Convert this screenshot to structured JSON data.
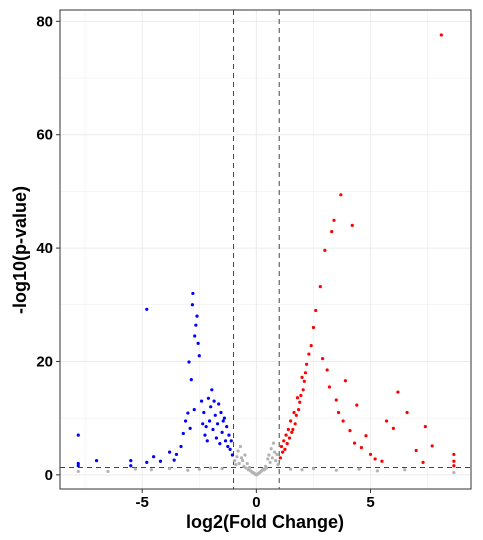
{
  "chart_data": {
    "type": "scatter",
    "title": "",
    "xlabel": "log2(Fold Change)",
    "ylabel": "-log10(p-value)",
    "xlim": [
      -8.6,
      9.4
    ],
    "ylim": [
      -2.5,
      82
    ],
    "x_ticks": [
      -5,
      0,
      5
    ],
    "y_ticks": [
      0,
      20,
      40,
      60,
      80
    ],
    "grid": true,
    "legend": "none",
    "thresholds": {
      "fold_change_log2": [
        -1,
        1
      ],
      "neg_log10_p": 1.3
    },
    "colors": {
      "down": "#0000ff",
      "up": "#ff0000",
      "not_significant": "#b3b3b3",
      "threshold_line": "#444444",
      "grid": "#ebebeb"
    },
    "series": [
      {
        "group": "down",
        "points": [
          [
            -7.8,
            7.0
          ],
          [
            -7.8,
            2.0
          ],
          [
            -7.8,
            1.6
          ],
          [
            -7.0,
            2.5
          ],
          [
            -5.5,
            2.5
          ],
          [
            -5.5,
            1.6
          ],
          [
            -4.8,
            29.2
          ],
          [
            -4.8,
            2.2
          ],
          [
            -4.5,
            3.2
          ],
          [
            -4.2,
            2.4
          ],
          [
            -3.8,
            4.0
          ],
          [
            -3.6,
            2.6
          ],
          [
            -3.5,
            3.6
          ],
          [
            -3.3,
            5.0
          ],
          [
            -3.2,
            7.3
          ],
          [
            -3.1,
            9.5
          ],
          [
            -3.0,
            10.9
          ],
          [
            -2.95,
            19.9
          ],
          [
            -2.9,
            8.2
          ],
          [
            -2.85,
            16.8
          ],
          [
            -2.8,
            30.0
          ],
          [
            -2.78,
            32.0
          ],
          [
            -2.72,
            11.5
          ],
          [
            -2.7,
            24.5
          ],
          [
            -2.65,
            26.4
          ],
          [
            -2.6,
            28.0
          ],
          [
            -2.55,
            23.2
          ],
          [
            -2.5,
            21.0
          ],
          [
            -2.4,
            13.0
          ],
          [
            -2.35,
            9.0
          ],
          [
            -2.3,
            11.0
          ],
          [
            -2.25,
            7.0
          ],
          [
            -2.2,
            8.5
          ],
          [
            -2.15,
            6.0
          ],
          [
            -2.1,
            13.5
          ],
          [
            -2.05,
            9.5
          ],
          [
            -2.0,
            12.0
          ],
          [
            -1.95,
            15.0
          ],
          [
            -1.9,
            8.0
          ],
          [
            -1.85,
            13.0
          ],
          [
            -1.8,
            10.5
          ],
          [
            -1.75,
            6.5
          ],
          [
            -1.7,
            9.0
          ],
          [
            -1.65,
            12.5
          ],
          [
            -1.6,
            5.5
          ],
          [
            -1.55,
            11.0
          ],
          [
            -1.5,
            7.5
          ],
          [
            -1.45,
            9.5
          ],
          [
            -1.4,
            10.0
          ],
          [
            -1.35,
            6.0
          ],
          [
            -1.3,
            8.5
          ],
          [
            -1.25,
            5.0
          ],
          [
            -1.2,
            7.0
          ],
          [
            -1.15,
            4.5
          ],
          [
            -1.1,
            6.0
          ],
          [
            -1.05,
            3.5
          ]
        ]
      },
      {
        "group": "up",
        "points": [
          [
            8.1,
            77.6
          ],
          [
            3.7,
            49.4
          ],
          [
            4.2,
            44.0
          ],
          [
            3.4,
            44.9
          ],
          [
            3.3,
            42.9
          ],
          [
            3.0,
            39.6
          ],
          [
            2.8,
            33.2
          ],
          [
            2.6,
            29.0
          ],
          [
            2.5,
            26.0
          ],
          [
            2.4,
            22.8
          ],
          [
            2.3,
            21.3
          ],
          [
            2.2,
            19.5
          ],
          [
            2.15,
            18.0
          ],
          [
            2.1,
            16.5
          ],
          [
            2.05,
            15.0
          ],
          [
            2.0,
            17.2
          ],
          [
            1.95,
            14.0
          ],
          [
            1.9,
            12.8
          ],
          [
            1.85,
            11.5
          ],
          [
            1.8,
            13.6
          ],
          [
            1.75,
            10.5
          ],
          [
            1.7,
            9.0
          ],
          [
            1.65,
            11.0
          ],
          [
            1.6,
            8.0
          ],
          [
            1.55,
            7.5
          ],
          [
            1.5,
            9.5
          ],
          [
            1.45,
            6.5
          ],
          [
            1.4,
            8.0
          ],
          [
            1.35,
            5.5
          ],
          [
            1.3,
            7.0
          ],
          [
            1.25,
            4.5
          ],
          [
            1.2,
            6.0
          ],
          [
            1.15,
            4.0
          ],
          [
            1.1,
            5.0
          ],
          [
            1.05,
            3.0
          ],
          [
            2.9,
            20.5
          ],
          [
            3.1,
            18.5
          ],
          [
            3.2,
            15.5
          ],
          [
            3.5,
            13.2
          ],
          [
            3.6,
            11.0
          ],
          [
            3.8,
            9.5
          ],
          [
            3.9,
            16.6
          ],
          [
            4.1,
            7.8
          ],
          [
            4.3,
            5.6
          ],
          [
            4.4,
            12.3
          ],
          [
            4.6,
            4.8
          ],
          [
            4.8,
            6.9
          ],
          [
            5.0,
            3.6
          ],
          [
            5.2,
            2.8
          ],
          [
            5.5,
            2.4
          ],
          [
            5.7,
            9.5
          ],
          [
            6.0,
            8.2
          ],
          [
            6.2,
            14.6
          ],
          [
            6.6,
            11.0
          ],
          [
            7.0,
            4.3
          ],
          [
            7.3,
            2.2
          ],
          [
            7.7,
            5.1
          ],
          [
            7.4,
            8.5
          ],
          [
            8.65,
            3.6
          ],
          [
            8.65,
            2.4
          ],
          [
            8.65,
            1.6
          ]
        ]
      },
      {
        "group": "not_significant",
        "points": [
          [
            -7.8,
            0.6
          ],
          [
            -6.5,
            0.6
          ],
          [
            -5.3,
            1.0
          ],
          [
            -4.6,
            0.9
          ],
          [
            -3.8,
            1.1
          ],
          [
            -3.0,
            0.8
          ],
          [
            -2.5,
            1.0
          ],
          [
            -2.0,
            1.2
          ],
          [
            -1.5,
            1.1
          ],
          [
            -0.95,
            2.5
          ],
          [
            -0.9,
            1.8
          ],
          [
            -0.85,
            3.2
          ],
          [
            -0.8,
            4.2
          ],
          [
            -0.75,
            2.0
          ],
          [
            -0.7,
            5.0
          ],
          [
            -0.65,
            3.0
          ],
          [
            -0.6,
            2.5
          ],
          [
            -0.55,
            1.5
          ],
          [
            -0.5,
            3.5
          ],
          [
            -0.45,
            1.2
          ],
          [
            -0.4,
            2.0
          ],
          [
            -0.35,
            0.9
          ],
          [
            -0.3,
            1.3
          ],
          [
            -0.25,
            0.7
          ],
          [
            -0.2,
            0.5
          ],
          [
            -0.15,
            0.4
          ],
          [
            -0.1,
            0.3
          ],
          [
            -0.05,
            0.1
          ],
          [
            0.0,
            0.0
          ],
          [
            0.05,
            0.1
          ],
          [
            0.1,
            0.3
          ],
          [
            0.15,
            0.4
          ],
          [
            0.2,
            0.6
          ],
          [
            0.25,
            0.8
          ],
          [
            0.3,
            1.0
          ],
          [
            0.35,
            0.9
          ],
          [
            0.4,
            1.5
          ],
          [
            0.45,
            1.2
          ],
          [
            0.5,
            2.8
          ],
          [
            0.55,
            3.5
          ],
          [
            0.6,
            2.2
          ],
          [
            0.65,
            4.6
          ],
          [
            0.7,
            3.0
          ],
          [
            0.75,
            5.6
          ],
          [
            0.8,
            4.0
          ],
          [
            0.85,
            2.5
          ],
          [
            0.9,
            3.6
          ],
          [
            0.95,
            1.8
          ],
          [
            1.5,
            1.0
          ],
          [
            2.0,
            0.9
          ],
          [
            2.5,
            1.1
          ],
          [
            3.5,
            0.8
          ],
          [
            4.5,
            1.0
          ],
          [
            5.3,
            0.7
          ],
          [
            6.5,
            0.9
          ],
          [
            8.65,
            0.4
          ]
        ]
      }
    ]
  }
}
